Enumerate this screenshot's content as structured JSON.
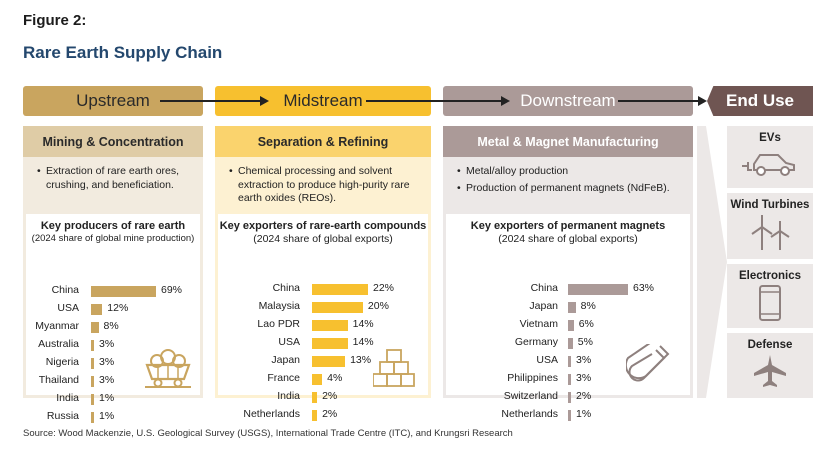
{
  "figure_label": "Figure 2:",
  "title": "Rare Earth Supply Chain",
  "stages": {
    "upstream": "Upstream",
    "midstream": "Midstream",
    "downstream": "Downstream",
    "end_use": "End Use"
  },
  "upstream": {
    "header": "Mining & Concentration",
    "bullets": [
      "Extraction of rare earth ores, crushing, and beneficiation."
    ],
    "chart_title": "Key producers of rare earth",
    "chart_subtitle": "(2024 share of global mine production)"
  },
  "midstream": {
    "header": "Separation & Refining",
    "bullets": [
      "Chemical processing and solvent extraction to produce high-purity rare earth oxides (REOs)."
    ],
    "chart_title": "Key exporters of rare-earth compounds",
    "chart_subtitle": "(2024 share of global exports)"
  },
  "downstream": {
    "header": "Metal & Magnet Manufacturing",
    "bullets": [
      "Metal/alloy production",
      "Production of permanent magnets (NdFeB)."
    ],
    "chart_title": "Key exporters of permanent magnets",
    "chart_subtitle": "(2024 share of global exports)"
  },
  "end_use": {
    "items": [
      {
        "label": "EVs",
        "icon": "car-icon"
      },
      {
        "label": "Wind Turbines",
        "icon": "wind-turbine-icon"
      },
      {
        "label": "Electronics",
        "icon": "smartphone-icon"
      },
      {
        "label": "Defense",
        "icon": "airplane-icon"
      }
    ]
  },
  "colors": {
    "upstream": "#c9a55f",
    "midstream": "#f7c02f",
    "downstream": "#ab9a98",
    "end_use": "#6f5552"
  },
  "chart_data": [
    {
      "type": "bar",
      "title": "Key producers of rare earth",
      "subtitle": "(2024 share of global mine production)",
      "categories": [
        "China",
        "USA",
        "Myanmar",
        "Australia",
        "Nigeria",
        "Thailand",
        "India",
        "Russia"
      ],
      "values": [
        69,
        12,
        8,
        3,
        3,
        3,
        1,
        1
      ],
      "labels": [
        "69%",
        "12%",
        "8%",
        "3%",
        "3%",
        "3%",
        "1%",
        "1%"
      ],
      "unit": "%",
      "color": "#c9a55f"
    },
    {
      "type": "bar",
      "title": "Key exporters of rare-earth compounds",
      "subtitle": "(2024 share of global exports)",
      "categories": [
        "China",
        "Malaysia",
        "Lao PDR",
        "USA",
        "Japan",
        "France",
        "India",
        "Netherlands"
      ],
      "values": [
        22,
        20,
        14,
        14,
        13,
        4,
        2,
        2
      ],
      "labels": [
        "22%",
        "20%",
        "14%",
        "14%",
        "13%",
        "4%",
        "2%",
        "2%"
      ],
      "unit": "%",
      "color": "#f7c02f"
    },
    {
      "type": "bar",
      "title": "Key exporters of permanent magnets",
      "subtitle": "(2024 share of global exports)",
      "categories": [
        "China",
        "Japan",
        "Vietnam",
        "Germany",
        "USA",
        "Philippines",
        "Switzerland",
        "Netherlands"
      ],
      "values": [
        63,
        8,
        6,
        5,
        3,
        3,
        2,
        1
      ],
      "labels": [
        "63%",
        "8%",
        "6%",
        "5%",
        "3%",
        "3%",
        "2%",
        "1%"
      ],
      "unit": "%",
      "color": "#ab9a98"
    }
  ],
  "source": "Source: Wood Mackenzie, U.S. Geological Survey (USGS), International Trade Centre (ITC), and Krungsri Research"
}
